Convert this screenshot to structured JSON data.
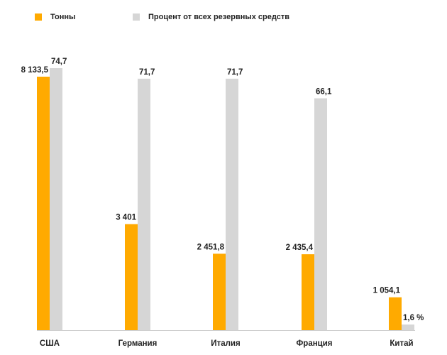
{
  "chart_data": {
    "type": "bar",
    "title": "",
    "xlabel": "",
    "ylabel": "",
    "grid": false,
    "legend_position": "top-left",
    "categories": [
      "США",
      "Германия",
      "Италия",
      "Франция",
      "Китай"
    ],
    "series": [
      {
        "name": "Тонны",
        "color": "#FFAA00",
        "values": [
          8133.5,
          3401,
          2451.8,
          2435.4,
          1054.1
        ],
        "labels": [
          "8 133,5",
          "3 401",
          "2 451,8",
          "2 435,4",
          "1 054,1"
        ],
        "ylim": [
          0,
          8133.5
        ]
      },
      {
        "name": "Процент от всех резервных средств",
        "color": "#D6D6D6",
        "values": [
          74.7,
          71.7,
          71.7,
          66.1,
          1.6
        ],
        "labels": [
          "74,7",
          "71,7",
          "71,7",
          "66,1",
          "1,6 %"
        ],
        "ylim": [
          0,
          74.7
        ]
      }
    ]
  }
}
